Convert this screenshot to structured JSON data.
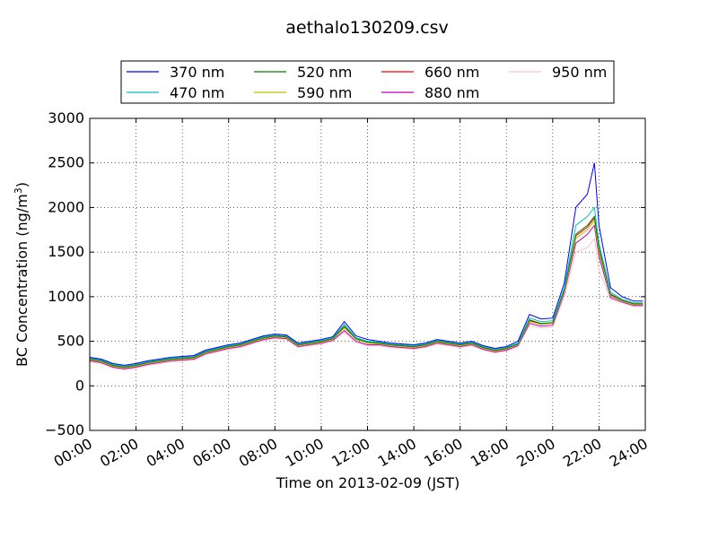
{
  "chart_data": {
    "type": "line",
    "title": "aethalo130209.csv",
    "xlabel": "Time on 2013-02-09 (JST)",
    "ylabel": "BC Concentration (ng/m",
    "ylabel_sup": "3",
    "ylabel_close": ")",
    "xlim": [
      "00:00",
      "24:00"
    ],
    "ylim": [
      -500,
      3000
    ],
    "grid": true,
    "legend_position": "top",
    "x_ticks": [
      "00:00",
      "02:00",
      "04:00",
      "06:00",
      "08:00",
      "10:00",
      "12:00",
      "14:00",
      "16:00",
      "18:00",
      "20:00",
      "22:00",
      "24:00"
    ],
    "y_ticks": [
      "−500",
      "0",
      "500",
      "1000",
      "1500",
      "2000",
      "2500",
      "3000"
    ],
    "x_hours_sampled": [
      0,
      0.5,
      1,
      1.5,
      2,
      2.5,
      3,
      3.5,
      4,
      4.5,
      5,
      5.5,
      6,
      6.5,
      7,
      7.5,
      8,
      8.5,
      9,
      9.5,
      10,
      10.5,
      11,
      11.5,
      12,
      12.5,
      13,
      13.5,
      14,
      14.5,
      15,
      15.5,
      16,
      16.5,
      17,
      17.5,
      18,
      18.5,
      19,
      19.5,
      20,
      20.5,
      21,
      21.5,
      21.8,
      22,
      22.5,
      23,
      23.5,
      23.9
    ],
    "series": [
      {
        "name": "370 nm",
        "color": "#0000ff",
        "values": [
          320,
          300,
          250,
          230,
          250,
          280,
          300,
          320,
          330,
          340,
          400,
          430,
          460,
          480,
          520,
          560,
          580,
          570,
          480,
          500,
          520,
          550,
          720,
          560,
          520,
          500,
          480,
          470,
          460,
          480,
          520,
          500,
          480,
          500,
          450,
          420,
          440,
          500,
          800,
          750,
          760,
          1150,
          2000,
          2150,
          2500,
          1800,
          1100,
          1000,
          950,
          950
        ]
      },
      {
        "name": "470 nm",
        "color": "#00bfbf",
        "values": [
          310,
          290,
          240,
          220,
          240,
          270,
          290,
          310,
          320,
          330,
          390,
          420,
          450,
          470,
          510,
          550,
          570,
          560,
          470,
          490,
          510,
          540,
          690,
          540,
          500,
          490,
          470,
          460,
          450,
          470,
          510,
          490,
          470,
          490,
          440,
          410,
          430,
          480,
          760,
          720,
          730,
          1100,
          1800,
          1900,
          2000,
          1600,
          1050,
          970,
          930,
          930
        ]
      },
      {
        "name": "520 nm",
        "color": "#008000",
        "values": [
          300,
          280,
          230,
          210,
          230,
          260,
          280,
          300,
          310,
          320,
          380,
          410,
          440,
          460,
          500,
          540,
          560,
          550,
          460,
          480,
          500,
          530,
          670,
          530,
          490,
          480,
          460,
          450,
          440,
          460,
          500,
          480,
          460,
          480,
          430,
          400,
          420,
          470,
          740,
          700,
          710,
          1080,
          1700,
          1800,
          1900,
          1550,
          1030,
          960,
          920,
          920
        ]
      },
      {
        "name": "590 nm",
        "color": "#bfbf00",
        "values": [
          290,
          270,
          220,
          200,
          220,
          250,
          270,
          290,
          300,
          310,
          370,
          400,
          430,
          450,
          490,
          530,
          550,
          540,
          450,
          470,
          490,
          520,
          650,
          520,
          480,
          470,
          450,
          440,
          430,
          450,
          490,
          470,
          450,
          470,
          420,
          390,
          410,
          460,
          720,
          690,
          700,
          1060,
          1650,
          1750,
          1850,
          1500,
          1010,
          950,
          910,
          910
        ]
      },
      {
        "name": "660 nm",
        "color": "#ff0000",
        "values": [
          295,
          275,
          225,
          205,
          225,
          255,
          275,
          295,
          305,
          315,
          375,
          405,
          435,
          455,
          495,
          535,
          555,
          545,
          455,
          475,
          495,
          525,
          660,
          525,
          485,
          475,
          455,
          445,
          435,
          455,
          495,
          475,
          455,
          475,
          425,
          395,
          415,
          470,
          730,
          695,
          705,
          1070,
          1680,
          1780,
          1880,
          1520,
          1020,
          955,
          915,
          915
        ]
      },
      {
        "name": "880 nm",
        "color": "#bf00bf",
        "values": [
          280,
          260,
          210,
          190,
          210,
          240,
          260,
          280,
          290,
          300,
          360,
          390,
          420,
          440,
          480,
          520,
          540,
          530,
          440,
          460,
          480,
          510,
          620,
          500,
          460,
          460,
          440,
          430,
          420,
          440,
          480,
          460,
          440,
          460,
          410,
          380,
          400,
          450,
          700,
          670,
          680,
          1040,
          1600,
          1700,
          1800,
          1450,
          990,
          940,
          900,
          900
        ]
      },
      {
        "name": "950 nm",
        "color": "#ffc0cb",
        "values": [
          270,
          250,
          200,
          180,
          200,
          230,
          250,
          270,
          280,
          290,
          350,
          380,
          410,
          430,
          470,
          510,
          530,
          520,
          430,
          450,
          470,
          500,
          600,
          490,
          450,
          450,
          430,
          420,
          410,
          430,
          470,
          450,
          430,
          450,
          400,
          370,
          390,
          440,
          680,
          650,
          660,
          1000,
          1500,
          1550,
          1650,
          1300,
          970,
          930,
          890,
          890
        ]
      }
    ]
  }
}
